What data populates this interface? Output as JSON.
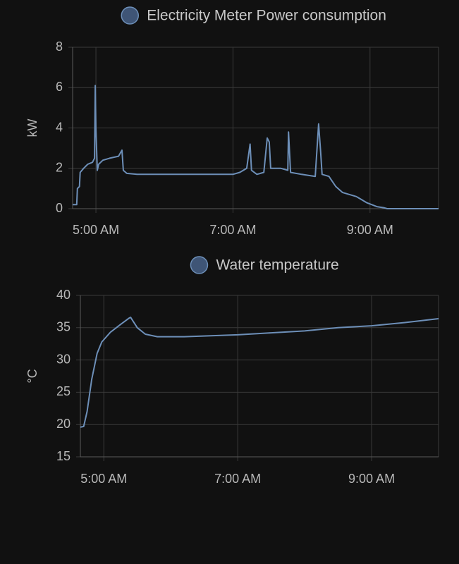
{
  "chart_data": [
    {
      "type": "line",
      "y_label": "kW",
      "x": [
        4.66,
        4.72,
        4.73,
        4.76,
        4.77,
        4.82,
        4.88,
        4.95,
        4.98,
        4.99,
        5.0,
        5.02,
        5.04,
        5.1,
        5.2,
        5.33,
        5.38,
        5.4,
        5.45,
        5.6,
        6.0,
        6.5,
        7.0,
        7.1,
        7.2,
        7.25,
        7.27,
        7.35,
        7.45,
        7.5,
        7.53,
        7.55,
        7.7,
        7.8,
        7.81,
        7.84,
        8.0,
        8.2,
        8.25,
        8.28,
        8.3,
        8.4,
        8.5,
        8.6,
        8.8,
        8.95,
        9.1,
        9.2,
        9.25,
        10.0
      ],
      "series": [
        {
          "name": "Electricity Meter Power consumption",
          "color": "#6d8fb8",
          "values": [
            0.2,
            0.2,
            1.0,
            1.1,
            1.8,
            2.0,
            2.2,
            2.3,
            2.5,
            6.1,
            4.0,
            1.9,
            2.2,
            2.4,
            2.5,
            2.6,
            2.9,
            1.9,
            1.75,
            1.7,
            1.7,
            1.7,
            1.7,
            1.8,
            2.0,
            3.2,
            1.9,
            1.7,
            1.8,
            3.5,
            3.3,
            2.0,
            2.0,
            1.9,
            3.8,
            1.8,
            1.7,
            1.6,
            4.2,
            2.8,
            1.7,
            1.6,
            1.1,
            0.8,
            0.6,
            0.3,
            0.1,
            0.05,
            0.0,
            0.0
          ]
        }
      ],
      "xlim": [
        4.66,
        10.0
      ],
      "xticks": [
        {
          "value": 5,
          "label": "5:00 AM"
        },
        {
          "value": 7,
          "label": "7:00 AM"
        },
        {
          "value": 9,
          "label": "9:00 AM"
        }
      ],
      "ylim": [
        0,
        8
      ],
      "yticks": [
        0,
        2,
        4,
        6,
        8
      ],
      "grid": true
    },
    {
      "type": "line",
      "y_label": "°C",
      "x": [
        4.65,
        4.7,
        4.75,
        4.82,
        4.9,
        4.97,
        5.1,
        5.25,
        5.38,
        5.4,
        5.5,
        5.62,
        5.8,
        6.2,
        7.0,
        7.5,
        8.0,
        8.5,
        9.0,
        9.5,
        10.0
      ],
      "series": [
        {
          "name": "Water temperature",
          "color": "#6d8fb8",
          "values": [
            19.6,
            19.7,
            22,
            27,
            31,
            32.8,
            34.3,
            35.5,
            36.5,
            36.6,
            35,
            34,
            33.6,
            33.6,
            33.9,
            34.2,
            34.5,
            35.0,
            35.3,
            35.8,
            36.4
          ]
        }
      ],
      "xlim": [
        4.65,
        10.0
      ],
      "xticks": [
        {
          "value": 5,
          "label": "5:00 AM"
        },
        {
          "value": 7,
          "label": "7:00 AM"
        },
        {
          "value": 9,
          "label": "9:00 AM"
        }
      ],
      "ylim": [
        15,
        40
      ],
      "yticks": [
        15,
        20,
        25,
        30,
        35,
        40
      ],
      "grid": true
    }
  ]
}
